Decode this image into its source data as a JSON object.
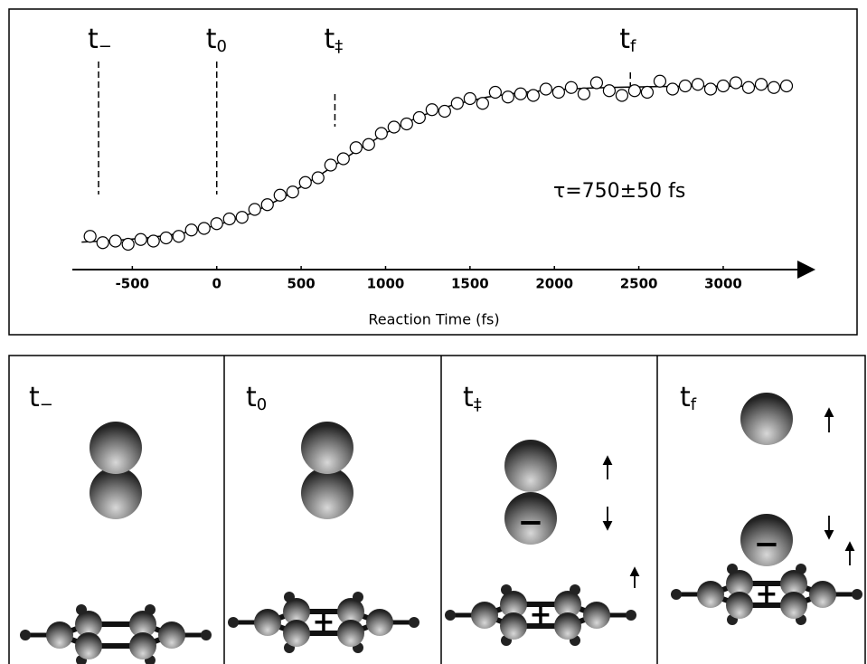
{
  "chart_data": {
    "type": "scatter",
    "x_label": "Reaction Time (fs)",
    "annotation": "τ=750±50 fs",
    "xlim": [
      -850,
      3450
    ],
    "xticks": [
      -500,
      0,
      500,
      1000,
      1500,
      2000,
      2500,
      3000
    ],
    "ylim": [
      -0.16,
      1.2
    ],
    "series": [
      {
        "type": "scatter",
        "color": "#000000",
        "x": [
          -750,
          -675,
          -600,
          -525,
          -450,
          -375,
          -300,
          -225,
          -150,
          -75,
          0,
          75,
          150,
          225,
          300,
          375,
          450,
          525,
          600,
          675,
          750,
          825,
          900,
          975,
          1050,
          1125,
          1200,
          1275,
          1350,
          1425,
          1500,
          1575,
          1650,
          1725,
          1800,
          1875,
          1950,
          2025,
          2100,
          2175,
          2250,
          2325,
          2400,
          2475,
          2550,
          2625,
          2700,
          2775,
          2850,
          2925,
          3000,
          3075,
          3150,
          3225,
          3300,
          3375
        ],
        "values": [
          0.05,
          0.01,
          0.02,
          0.0,
          0.03,
          0.02,
          0.04,
          0.05,
          0.09,
          0.1,
          0.13,
          0.16,
          0.17,
          0.22,
          0.25,
          0.31,
          0.33,
          0.39,
          0.42,
          0.5,
          0.54,
          0.61,
          0.63,
          0.7,
          0.74,
          0.76,
          0.8,
          0.85,
          0.84,
          0.89,
          0.92,
          0.89,
          0.96,
          0.93,
          0.95,
          0.94,
          0.98,
          0.96,
          0.99,
          0.95,
          1.02,
          0.97,
          0.94,
          0.97,
          0.96,
          1.03,
          0.98,
          1.0,
          1.01,
          0.98,
          1.0,
          1.02,
          0.99,
          1.01,
          0.99,
          1.0
        ]
      },
      {
        "type": "line",
        "color": "#000000",
        "x": [
          -800,
          -600,
          -400,
          -200,
          0,
          200,
          400,
          600,
          800,
          1000,
          1200,
          1400,
          1600,
          1800,
          2000,
          2200,
          2400,
          2600,
          2800,
          3000,
          3200,
          3400
        ],
        "values": [
          0.014,
          0.024,
          0.041,
          0.071,
          0.119,
          0.193,
          0.298,
          0.429,
          0.571,
          0.702,
          0.807,
          0.881,
          0.929,
          0.959,
          0.976,
          0.986,
          0.992,
          0.996,
          0.998,
          0.999,
          0.999,
          1.0
        ]
      }
    ],
    "time_markers": [
      {
        "label": "t",
        "sub": "−",
        "x": -700
      },
      {
        "label": "t",
        "sub": "0",
        "x": 0
      },
      {
        "label": "t",
        "sub": "‡",
        "x": 700
      },
      {
        "label": "t",
        "sub": "f",
        "x": 2450
      }
    ]
  },
  "panels": [
    {
      "label": "t",
      "sub": "−"
    },
    {
      "label": "t",
      "sub": "0"
    },
    {
      "label": "t",
      "sub": "‡",
      "charge": "−"
    },
    {
      "label": "t",
      "sub": "f",
      "charge": "−"
    }
  ],
  "ring_charge": "+"
}
